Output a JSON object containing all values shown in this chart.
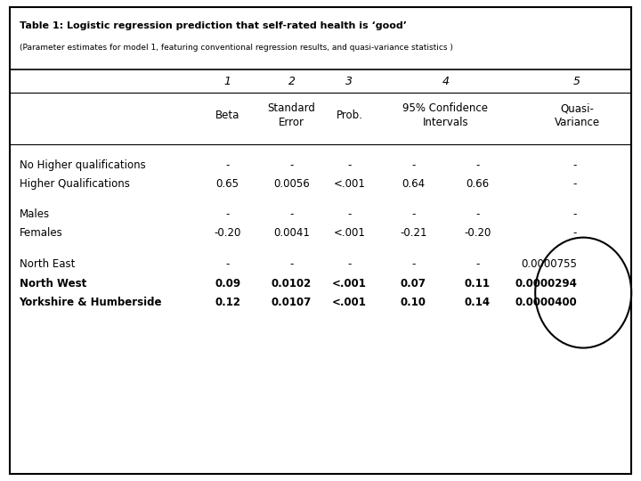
{
  "title_bold": "Table 1: Logistic regression prediction that self-rated health is ‘good’",
  "title_normal": " (Parameter estimates for model 1, featuring conventional regression results, and quasi-variance statistics )",
  "title_normal_line2": "conventional regression results, and quasi-variance statistics )",
  "col_headers_num": [
    "1",
    "2",
    "3",
    "4",
    "5"
  ],
  "col_headers_text": [
    "Beta",
    "Standard\nError",
    "Prob.",
    "95% Confidence\nIntervals",
    "Quasi-\nVariance"
  ],
  "rows": [
    [
      "No Higher qualifications",
      "-",
      "-",
      "-",
      "-",
      "-",
      "-"
    ],
    [
      "Higher Qualifications",
      "0.65",
      "0.0056",
      "<.001",
      "0.64",
      "0.66",
      "-"
    ],
    [
      "",
      "",
      "",
      "",
      "",
      "",
      ""
    ],
    [
      "Males",
      "-",
      "-",
      "-",
      "-",
      "-",
      "-"
    ],
    [
      "Females",
      "-0.20",
      "0.0041",
      "<.001",
      "-0.21",
      "-0.20",
      "-"
    ],
    [
      "",
      "",
      "",
      "",
      "",
      "",
      ""
    ],
    [
      "North East",
      "-",
      "-",
      "-",
      "-",
      "-",
      "0.0000755"
    ],
    [
      "North West",
      "0.09",
      "0.0102",
      "<.001",
      "0.07",
      "0.11",
      "0.0000294"
    ],
    [
      "Yorkshire & Humberside",
      "0.12",
      "0.0107",
      "<.001",
      "0.10",
      "0.14",
      "0.0000400"
    ]
  ],
  "bold_rows": [
    7,
    8
  ],
  "bg_color": "#ffffff"
}
